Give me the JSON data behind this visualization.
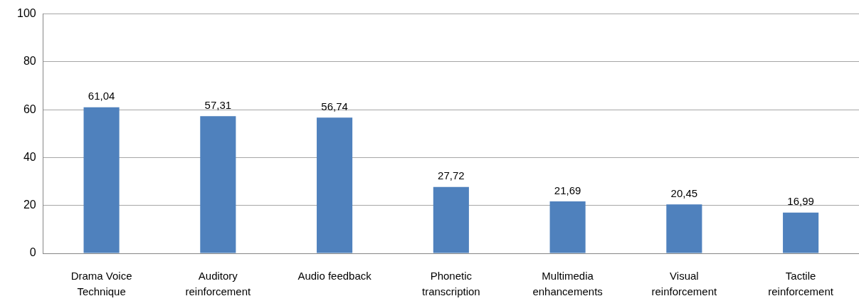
{
  "chart_data": {
    "type": "bar",
    "categories": [
      "Drama Voice Technique",
      "Auditory reinforcement",
      "Audio feedback",
      "Phonetic transcription",
      "Multimedia enhancements",
      "Visual reinforcement",
      "Tactile reinforcement"
    ],
    "values": [
      61.04,
      57.31,
      56.74,
      27.72,
      21.69,
      20.45,
      16.99
    ],
    "value_labels": [
      "61,04",
      "57,31",
      "56,74",
      "27,72",
      "21,69",
      "20,45",
      "16,99"
    ],
    "color": "#4f81bd",
    "ylim": [
      0,
      100
    ],
    "yticks": [
      0,
      20,
      40,
      60,
      80,
      100
    ],
    "grid": "y"
  }
}
